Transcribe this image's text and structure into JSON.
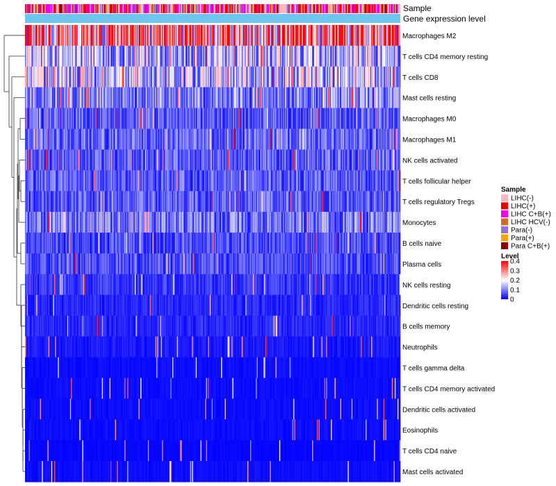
{
  "chart_data": {
    "type": "heatmap",
    "annotation_tracks": [
      "Sample",
      "Gene expression level"
    ],
    "rows": [
      {
        "name": "Macrophages M2",
        "mean": 0.3
      },
      {
        "name": "T cells CD4 memory resting",
        "mean": 0.14
      },
      {
        "name": "T cells CD8",
        "mean": 0.15
      },
      {
        "name": "Mast cells resting",
        "mean": 0.1
      },
      {
        "name": "Macrophages M0",
        "mean": 0.07
      },
      {
        "name": "Macrophages M1",
        "mean": 0.08
      },
      {
        "name": "NK cells activated",
        "mean": 0.07
      },
      {
        "name": "T cells follicular helper",
        "mean": 0.07
      },
      {
        "name": "T cells regulatory  Tregs",
        "mean": 0.07
      },
      {
        "name": "Monocytes",
        "mean": 0.09
      },
      {
        "name": "B cells naive",
        "mean": 0.06
      },
      {
        "name": "Plasma cells",
        "mean": 0.06
      },
      {
        "name": "NK cells resting",
        "mean": 0.04
      },
      {
        "name": "Dendritic cells resting",
        "mean": 0.03
      },
      {
        "name": "B cells memory",
        "mean": 0.03
      },
      {
        "name": "Neutrophils",
        "mean": 0.02
      },
      {
        "name": "T cells gamma delta",
        "mean": 0.01
      },
      {
        "name": "T cells CD4 memory activated",
        "mean": 0.01
      },
      {
        "name": "Dendritic cells activated",
        "mean": 0.01
      },
      {
        "name": "Eosinophils",
        "mean": 0.01
      },
      {
        "name": "T cells CD4 naive",
        "mean": 0.005
      },
      {
        "name": "Mast cells activated",
        "mean": 0.01
      }
    ],
    "legend_sample": {
      "title": "Sample",
      "entries": [
        {
          "label": "LIHC(-)",
          "color": "#FFB6C1"
        },
        {
          "label": "LIHC(+)",
          "color": "#EE0000"
        },
        {
          "label": "LIHC C+B(+)",
          "color": "#EE00EE"
        },
        {
          "label": "LIHC HCV(-)",
          "color": "#D2691E"
        },
        {
          "label": "Para(-)",
          "color": "#9370DB"
        },
        {
          "label": "Para(+)",
          "color": "#FFA500"
        },
        {
          "label": "Para C+B(+)",
          "color": "#8B0000"
        }
      ]
    },
    "legend_level": {
      "title": "Level",
      "ticks": [
        "0.4",
        "0.3",
        "0.2",
        "0.1",
        "0"
      ],
      "range": [
        0,
        0.4
      ],
      "colors": [
        "#0000FF",
        "#FFFFFF",
        "#FF0000"
      ]
    },
    "expression_track_color": "#6EC6F0",
    "n_samples": 400
  }
}
